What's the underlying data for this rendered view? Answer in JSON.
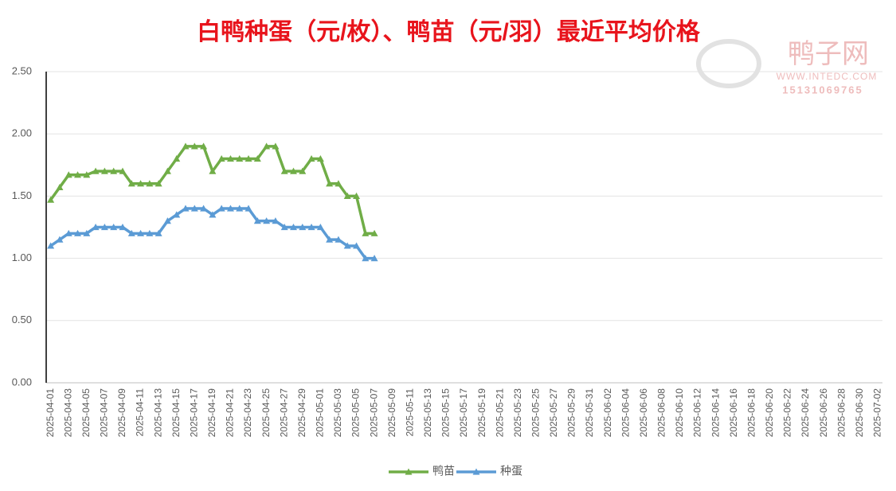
{
  "chart_data": {
    "type": "line",
    "title": "白鸭种蛋（元/枚）、鸭苗（元/羽）最近平均价格",
    "watermark": {
      "name": "鸭子网",
      "url": "WWW.INTEDC.COM",
      "phone": "15131069765"
    },
    "categories": [
      "2025-04-01",
      null,
      "2025-04-03",
      null,
      "2025-04-05",
      null,
      "2025-04-07",
      null,
      "2025-04-09",
      null,
      "2025-04-11",
      null,
      "2025-04-13",
      null,
      "2025-04-15",
      null,
      "2025-04-17",
      null,
      "2025-04-19",
      null,
      "2025-04-21",
      null,
      "2025-04-23",
      null,
      "2025-04-25",
      null,
      "2025-04-27",
      null,
      "2025-04-29",
      null,
      "2025-05-01",
      null,
      "2025-05-03",
      null,
      "2025-05-05",
      null,
      "2025-05-07",
      null,
      "2025-05-09",
      null,
      "2025-05-11",
      null,
      "2025-05-13",
      null,
      "2025-05-15",
      null,
      "2025-05-17",
      null,
      "2025-05-19",
      null,
      "2025-05-21",
      null,
      "2025-05-23",
      null,
      "2025-05-25",
      null,
      "2025-05-27",
      null,
      "2025-05-29",
      null,
      "2025-05-31",
      null,
      "2025-06-02",
      null,
      "2025-06-04",
      null,
      "2025-06-06",
      null,
      "2025-06-08",
      null,
      "2025-06-10",
      null,
      "2025-06-12",
      null,
      "2025-06-14",
      null,
      "2025-06-16",
      null,
      "2025-06-18",
      null,
      "2025-06-20",
      null,
      "2025-06-22",
      null,
      "2025-06-24",
      null,
      "2025-06-26",
      null,
      "2025-06-28",
      null,
      "2025-06-30",
      null,
      "2025-07-02"
    ],
    "series": [
      {
        "name": "鸭苗",
        "color": "#70ad47",
        "values": [
          1.47,
          1.57,
          1.67,
          1.67,
          1.67,
          1.7,
          1.7,
          1.7,
          1.7,
          1.6,
          1.6,
          1.6,
          1.6,
          1.7,
          1.8,
          1.9,
          1.9,
          1.9,
          1.7,
          1.8,
          1.8,
          1.8,
          1.8,
          1.8,
          1.9,
          1.9,
          1.7,
          1.7,
          1.7,
          1.8,
          1.8,
          1.6,
          1.6,
          1.5,
          1.5,
          1.2,
          1.2,
          null,
          null,
          null,
          null,
          null,
          null,
          null,
          null,
          null,
          null,
          null,
          null,
          null,
          null,
          null,
          null,
          null,
          null,
          null,
          null,
          null,
          null,
          null,
          null,
          null,
          null,
          null,
          null,
          null,
          null,
          null,
          null,
          null,
          null,
          null,
          null,
          null,
          null,
          null,
          null,
          null,
          null,
          null,
          null,
          null,
          null,
          null,
          null,
          null,
          null,
          null,
          null,
          null,
          null,
          null,
          null
        ]
      },
      {
        "name": "种蛋",
        "color": "#5b9bd5",
        "values": [
          1.1,
          1.15,
          1.2,
          1.2,
          1.2,
          1.25,
          1.25,
          1.25,
          1.25,
          1.2,
          1.2,
          1.2,
          1.2,
          1.3,
          1.35,
          1.4,
          1.4,
          1.4,
          1.35,
          1.4,
          1.4,
          1.4,
          1.4,
          1.3,
          1.3,
          1.3,
          1.25,
          1.25,
          1.25,
          1.25,
          1.25,
          1.15,
          1.15,
          1.1,
          1.1,
          1.0,
          1.0,
          null,
          null,
          null,
          null,
          null,
          null,
          null,
          null,
          null,
          null,
          null,
          null,
          null,
          null,
          null,
          null,
          null,
          null,
          null,
          null,
          null,
          null,
          null,
          null,
          null,
          null,
          null,
          null,
          null,
          null,
          null,
          null,
          null,
          null,
          null,
          null,
          null,
          null,
          null,
          null,
          null,
          null,
          null,
          null,
          null,
          null,
          null,
          null,
          null,
          null,
          null,
          null,
          null,
          null,
          null,
          null
        ]
      }
    ],
    "ylim": [
      0,
      2.5
    ],
    "yticks": [
      {
        "value": 0,
        "label": "0.00"
      },
      {
        "value": 0.5,
        "label": "0.50"
      },
      {
        "value": 1,
        "label": "1.00"
      },
      {
        "value": 1.5,
        "label": "1.50"
      },
      {
        "value": 2,
        "label": "2.00"
      },
      {
        "value": 2.5,
        "label": "2.50"
      }
    ],
    "grid": true,
    "legend": "bottom"
  }
}
